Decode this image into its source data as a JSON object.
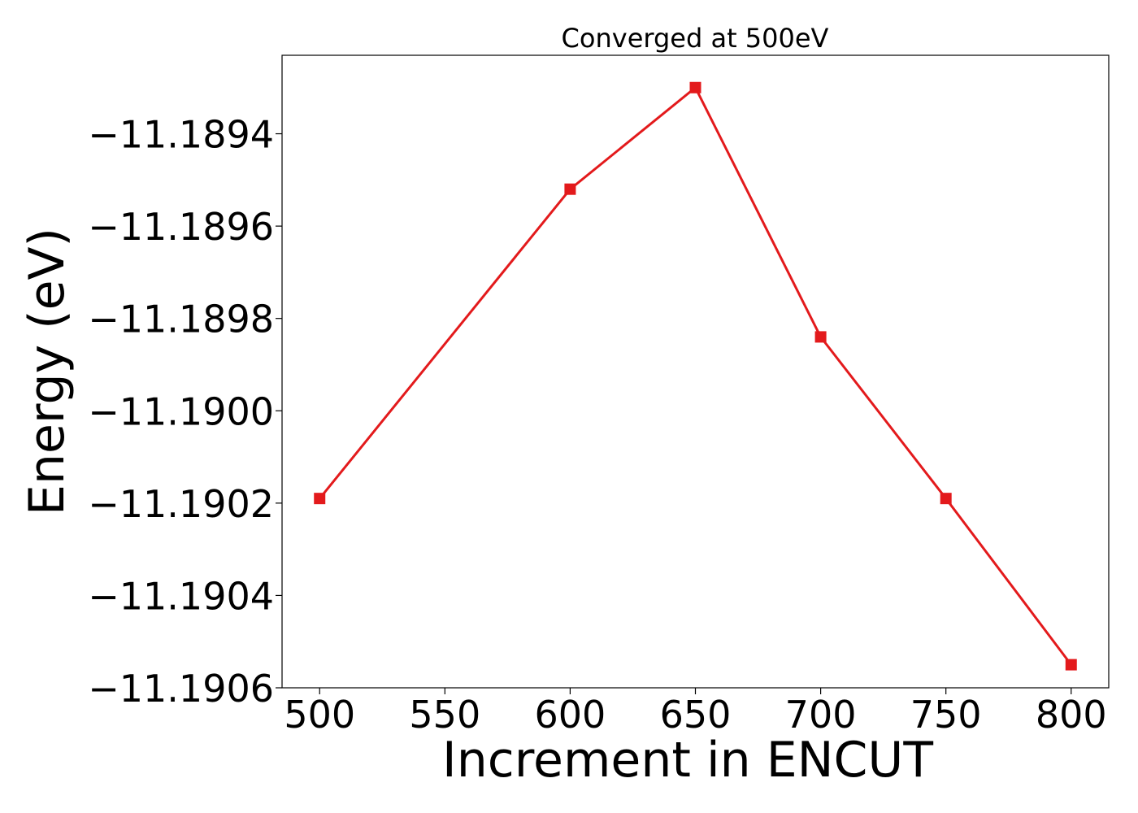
{
  "chart_data": {
    "type": "line",
    "title": "Converged at 500eV",
    "xlabel": "Increment in ENCUT",
    "ylabel": "Energy (eV)",
    "x": [
      500,
      600,
      650,
      700,
      750,
      800
    ],
    "series": [
      {
        "values": [
          -11.19019,
          -11.18952,
          -11.1893,
          -11.18984,
          -11.19019,
          -11.19055
        ]
      }
    ],
    "xlim": [
      485,
      815
    ],
    "ylim": [
      -11.1906,
      -11.18923
    ],
    "xticks": [
      500,
      550,
      600,
      650,
      700,
      750,
      800
    ],
    "xtick_labels": [
      "500",
      "550",
      "600",
      "650",
      "700",
      "750",
      "800"
    ],
    "yticks": [
      -11.1906,
      -11.1904,
      -11.1902,
      -11.19,
      -11.1898,
      -11.1896,
      -11.1894
    ],
    "ytick_labels": [
      "−11.1906",
      "−11.1904",
      "−11.1902",
      "−11.1900",
      "−11.1898",
      "−11.1896",
      "−11.1894"
    ],
    "grid": false,
    "line_color": "#e31a1c",
    "marker": "square"
  }
}
